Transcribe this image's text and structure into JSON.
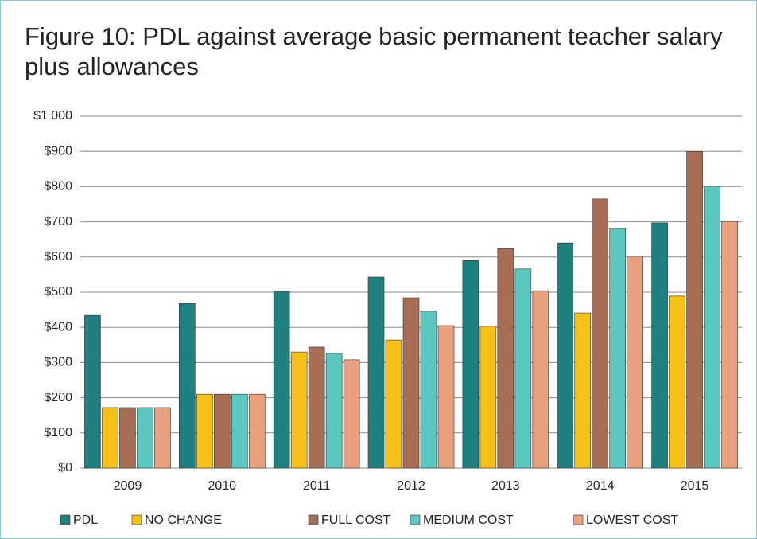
{
  "chart_data": {
    "type": "bar",
    "title": "Figure 10: PDL against average basic permanent teacher salary plus allowances",
    "categories": [
      "2009",
      "2010",
      "2011",
      "2012",
      "2013",
      "2014",
      "2015"
    ],
    "series": [
      {
        "name": "PDL",
        "color": "#1f8080",
        "values": [
          434,
          468,
          502,
          543,
          590,
          640,
          697
        ]
      },
      {
        "name": "NO CHANGE",
        "color": "#f5c018",
        "values": [
          172,
          210,
          330,
          364,
          403,
          441,
          489
        ]
      },
      {
        "name": "FULL COST",
        "color": "#a86e55",
        "values": [
          172,
          210,
          344,
          484,
          624,
          765,
          900
        ]
      },
      {
        "name": "MEDIUM COST",
        "color": "#5bc8c0",
        "values": [
          172,
          210,
          326,
          446,
          566,
          681,
          801
        ]
      },
      {
        "name": "LOWEST COST",
        "color": "#e9a07f",
        "values": [
          172,
          210,
          308,
          405,
          504,
          602,
          701
        ]
      }
    ],
    "ylim": [
      0,
      1000
    ],
    "yticks": [
      {
        "value": 0,
        "label": "$0"
      },
      {
        "value": 100,
        "label": "$100"
      },
      {
        "value": 200,
        "label": "$200"
      },
      {
        "value": 300,
        "label": "$300"
      },
      {
        "value": 400,
        "label": "$400"
      },
      {
        "value": 500,
        "label": "$500"
      },
      {
        "value": 600,
        "label": "$600"
      },
      {
        "value": 700,
        "label": "$700"
      },
      {
        "value": 800,
        "label": "$800"
      },
      {
        "value": 900,
        "label": "$900"
      },
      {
        "value": 1000,
        "label": "$1 000"
      }
    ],
    "grid": true
  }
}
